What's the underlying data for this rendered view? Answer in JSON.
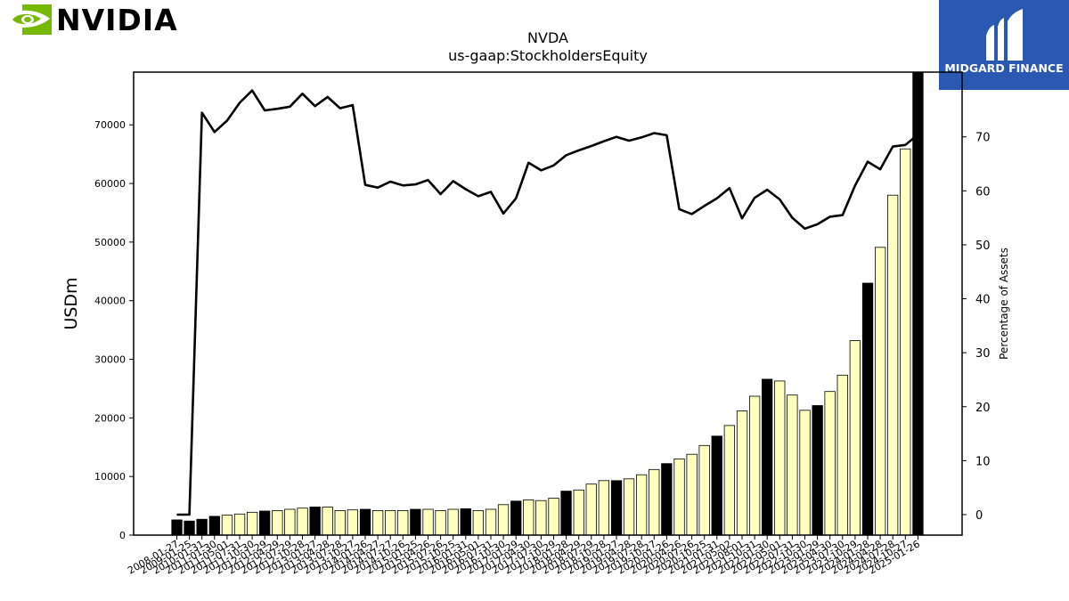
{
  "brand": {
    "name": "NVIDIA",
    "accent": "#76b900"
  },
  "partner": {
    "name": "MIDGARD FINANCE",
    "color": "#2b58b0"
  },
  "chart_data": {
    "type": "bar+line",
    "title": "NVDA",
    "subtitle": "us-gaap:StockholdersEquity",
    "ylabel": "USDm",
    "y2label": "Percentage of Assets",
    "ylim": [
      0,
      79000
    ],
    "y2lim": [
      -3.8,
      82.0
    ],
    "yticks": [
      0,
      10000,
      20000,
      30000,
      40000,
      50000,
      60000,
      70000
    ],
    "y2ticks": [
      0,
      10,
      20,
      30,
      40,
      50,
      60,
      70
    ],
    "grid": false,
    "legend": "none",
    "bar_colors": {
      "fiscal_year_end": "#000000",
      "quarter": "#ffffc0"
    },
    "x_labels": [
      "2008-01-27",
      "2009-01-25",
      "2010-01-31",
      "2011-01-30",
      "2011-05-01",
      "2011-07-31",
      "2011-10-30",
      "2012-01-29",
      "2012-04-29",
      "2012-07-29",
      "2012-10-28",
      "2013-01-27",
      "2013-04-28",
      "2013-07-28",
      "2013-10-27",
      "2014-01-26",
      "2014-04-27",
      "2014-07-27",
      "2014-10-26",
      "2015-01-25",
      "2015-04-26",
      "2015-07-26",
      "2015-10-25",
      "2016-01-31",
      "2016-05-01",
      "2016-07-31",
      "2016-10-30",
      "2017-01-29",
      "2017-04-30",
      "2017-07-30",
      "2017-10-29",
      "2018-01-28",
      "2018-04-29",
      "2018-07-29",
      "2018-10-28",
      "2019-01-27",
      "2019-04-28",
      "2019-07-28",
      "2019-10-27",
      "2020-01-26",
      "2020-04-26",
      "2020-07-26",
      "2020-10-25",
      "2021-01-31",
      "2021-05-02",
      "2021-08-01",
      "2021-10-31",
      "2022-01-30",
      "2022-05-01",
      "2022-07-31",
      "2022-10-30",
      "2023-01-29",
      "2023-04-30",
      "2023-07-30",
      "2023-10-29",
      "2024-01-28",
      "2024-04-28",
      "2024-07-28",
      "2024-10-27",
      "2025-01-26"
    ],
    "fiscal_year_end": [
      true,
      true,
      true,
      true,
      false,
      false,
      false,
      true,
      false,
      false,
      false,
      true,
      false,
      false,
      false,
      true,
      false,
      false,
      false,
      true,
      false,
      false,
      false,
      true,
      false,
      false,
      false,
      true,
      false,
      false,
      false,
      true,
      false,
      false,
      false,
      true,
      false,
      false,
      false,
      true,
      false,
      false,
      false,
      true,
      false,
      false,
      false,
      true,
      false,
      false,
      false,
      true,
      false,
      false,
      false,
      true,
      false,
      false,
      false,
      true
    ],
    "series": [
      {
        "name": "",
        "type": "bar",
        "values": [
          2600,
          2400,
          2700,
          3200,
          3400,
          3600,
          3900,
          4100,
          4200,
          4400,
          4600,
          4800,
          4800,
          4200,
          4300,
          4400,
          4200,
          4200,
          4200,
          4400,
          4400,
          4200,
          4400,
          4500,
          4200,
          4400,
          5200,
          5800,
          6000,
          5900,
          6300,
          7500,
          7700,
          8700,
          9300,
          9300,
          9600,
          10300,
          11200,
          12200,
          13000,
          13800,
          15300,
          16900,
          18700,
          21200,
          23700,
          26600,
          26300,
          23900,
          21300,
          22100,
          24500,
          27300,
          33200,
          43000,
          49100,
          58000,
          65900,
          79300
        ]
      },
      {
        "name": "",
        "type": "line",
        "axis": "right",
        "values": [
          0.0,
          0.0,
          74.5,
          70.9,
          73.0,
          76.3,
          78.6,
          74.9,
          75.2,
          75.6,
          78.0,
          75.7,
          77.4,
          75.3,
          75.9,
          61.1,
          60.6,
          61.7,
          61.0,
          61.2,
          62.0,
          59.4,
          61.8,
          60.3,
          59.0,
          59.8,
          55.8,
          58.6,
          65.2,
          63.8,
          64.7,
          66.6,
          67.5,
          68.3,
          69.2,
          70.0,
          69.3,
          69.9,
          70.7,
          70.3,
          56.6,
          55.7,
          57.2,
          58.6,
          60.5,
          54.9,
          58.7,
          60.2,
          58.4,
          55.0,
          53.0,
          53.8,
          55.2,
          55.5,
          61.0,
          65.4,
          64.0,
          68.2,
          68.5,
          70.4
        ]
      }
    ]
  }
}
